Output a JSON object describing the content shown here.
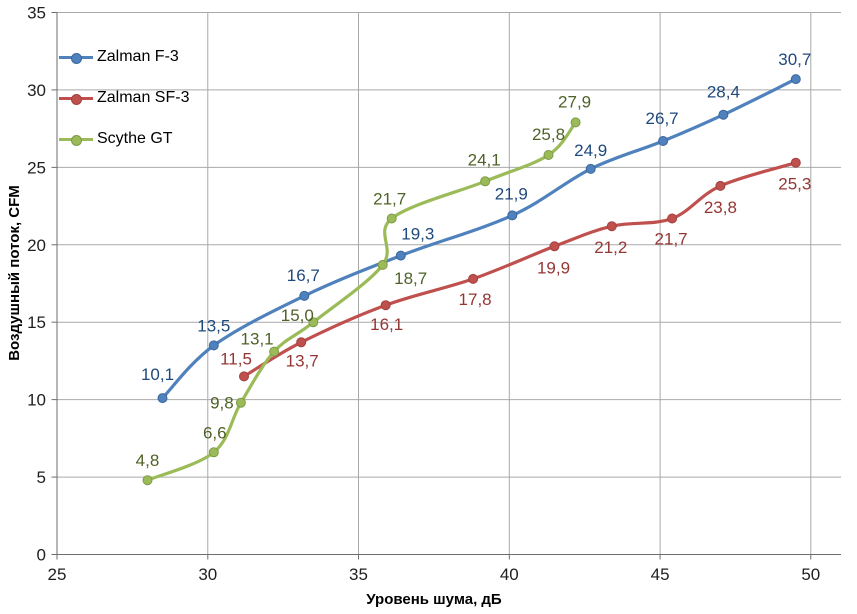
{
  "chart_data": {
    "type": "line",
    "title": "",
    "xlabel": "Уровень шума, дБ",
    "ylabel": "Воздушный поток, CFM",
    "xlim": [
      25,
      51
    ],
    "ylim": [
      0,
      35
    ],
    "x_ticks": [
      25,
      30,
      35,
      40,
      45,
      50
    ],
    "y_ticks": [
      0,
      5,
      10,
      15,
      20,
      25,
      30,
      35
    ],
    "grid": true,
    "smooth": true,
    "legend_position": "upper-left-inside",
    "decimal_separator": ",",
    "axis_color": "#6E6E6E",
    "grid_color": "#A9A9A9",
    "series": [
      {
        "name": "Zalman F-3",
        "color": "#4F81BD",
        "marker_stroke": "#3A679C",
        "label_color": "#1F497D",
        "points": [
          {
            "x": 28.5,
            "y": 10.1,
            "label": "10,1",
            "dx": -5,
            "dy": -24
          },
          {
            "x": 30.2,
            "y": 13.5,
            "label": "13,5",
            "dx": 0,
            "dy": -20
          },
          {
            "x": 33.2,
            "y": 16.7,
            "label": "16,7",
            "dx": -1,
            "dy": -21
          },
          {
            "x": 36.4,
            "y": 19.3,
            "label": "19,3",
            "dx": 17,
            "dy": -22
          },
          {
            "x": 40.1,
            "y": 21.9,
            "label": "21,9",
            "dx": -1,
            "dy": -22
          },
          {
            "x": 42.7,
            "y": 24.9,
            "label": "24,9",
            "dx": 0,
            "dy": -19
          },
          {
            "x": 45.1,
            "y": 26.7,
            "label": "26,7",
            "dx": -1,
            "dy": -23
          },
          {
            "x": 47.1,
            "y": 28.4,
            "label": "28,4",
            "dx": 0,
            "dy": -23
          },
          {
            "x": 49.5,
            "y": 30.7,
            "label": "30,7",
            "dx": -1,
            "dy": -20
          }
        ]
      },
      {
        "name": "Zalman SF-3",
        "color": "#C0504D",
        "marker_stroke": "#9F4340",
        "label_color": "#943634",
        "points": [
          {
            "x": 31.2,
            "y": 11.5,
            "label": "11,5",
            "dx": -8,
            "dy": -18
          },
          {
            "x": 33.1,
            "y": 13.7,
            "label": "13,7",
            "dx": 1,
            "dy": 18
          },
          {
            "x": 35.9,
            "y": 16.1,
            "label": "16,1",
            "dx": 1,
            "dy": 19
          },
          {
            "x": 38.8,
            "y": 17.8,
            "label": "17,8",
            "dx": 2,
            "dy": 20
          },
          {
            "x": 41.5,
            "y": 19.9,
            "label": "19,9",
            "dx": -1,
            "dy": 21
          },
          {
            "x": 43.4,
            "y": 21.2,
            "label": "21,2",
            "dx": -1,
            "dy": 21
          },
          {
            "x": 45.4,
            "y": 21.7,
            "label": "21,7",
            "dx": -1,
            "dy": 20
          },
          {
            "x": 47.0,
            "y": 23.8,
            "label": "23,8",
            "dx": 0,
            "dy": 21
          },
          {
            "x": 49.5,
            "y": 25.3,
            "label": "25,3",
            "dx": -1,
            "dy": 21
          }
        ]
      },
      {
        "name": "Scythe GT",
        "color": "#9BBB59",
        "marker_stroke": "#7F9A48",
        "label_color": "#4F6228",
        "points": [
          {
            "x": 28.0,
            "y": 4.8,
            "label": "4,8",
            "dx": 0,
            "dy": -20
          },
          {
            "x": 30.2,
            "y": 6.6,
            "label": "6,6",
            "dx": 1,
            "dy": -20
          },
          {
            "x": 31.1,
            "y": 9.8,
            "label": "9,8",
            "dx": -19,
            "dy": 0
          },
          {
            "x": 32.2,
            "y": 13.1,
            "label": "13,1",
            "dx": -17,
            "dy": -13
          },
          {
            "x": 33.5,
            "y": 15.0,
            "label": "15,0",
            "dx": -16,
            "dy": -7
          },
          {
            "x": 35.8,
            "y": 18.7,
            "label": "18,7",
            "dx": 28,
            "dy": 13
          },
          {
            "x": 36.1,
            "y": 21.7,
            "label": "21,7",
            "dx": -2,
            "dy": -20
          },
          {
            "x": 39.2,
            "y": 24.1,
            "label": "24,1",
            "dx": -1,
            "dy": -22
          },
          {
            "x": 41.3,
            "y": 25.8,
            "label": "25,8",
            "dx": 0,
            "dy": -21
          },
          {
            "x": 42.2,
            "y": 27.9,
            "label": "27,9",
            "dx": -1,
            "dy": -21
          }
        ]
      }
    ]
  }
}
